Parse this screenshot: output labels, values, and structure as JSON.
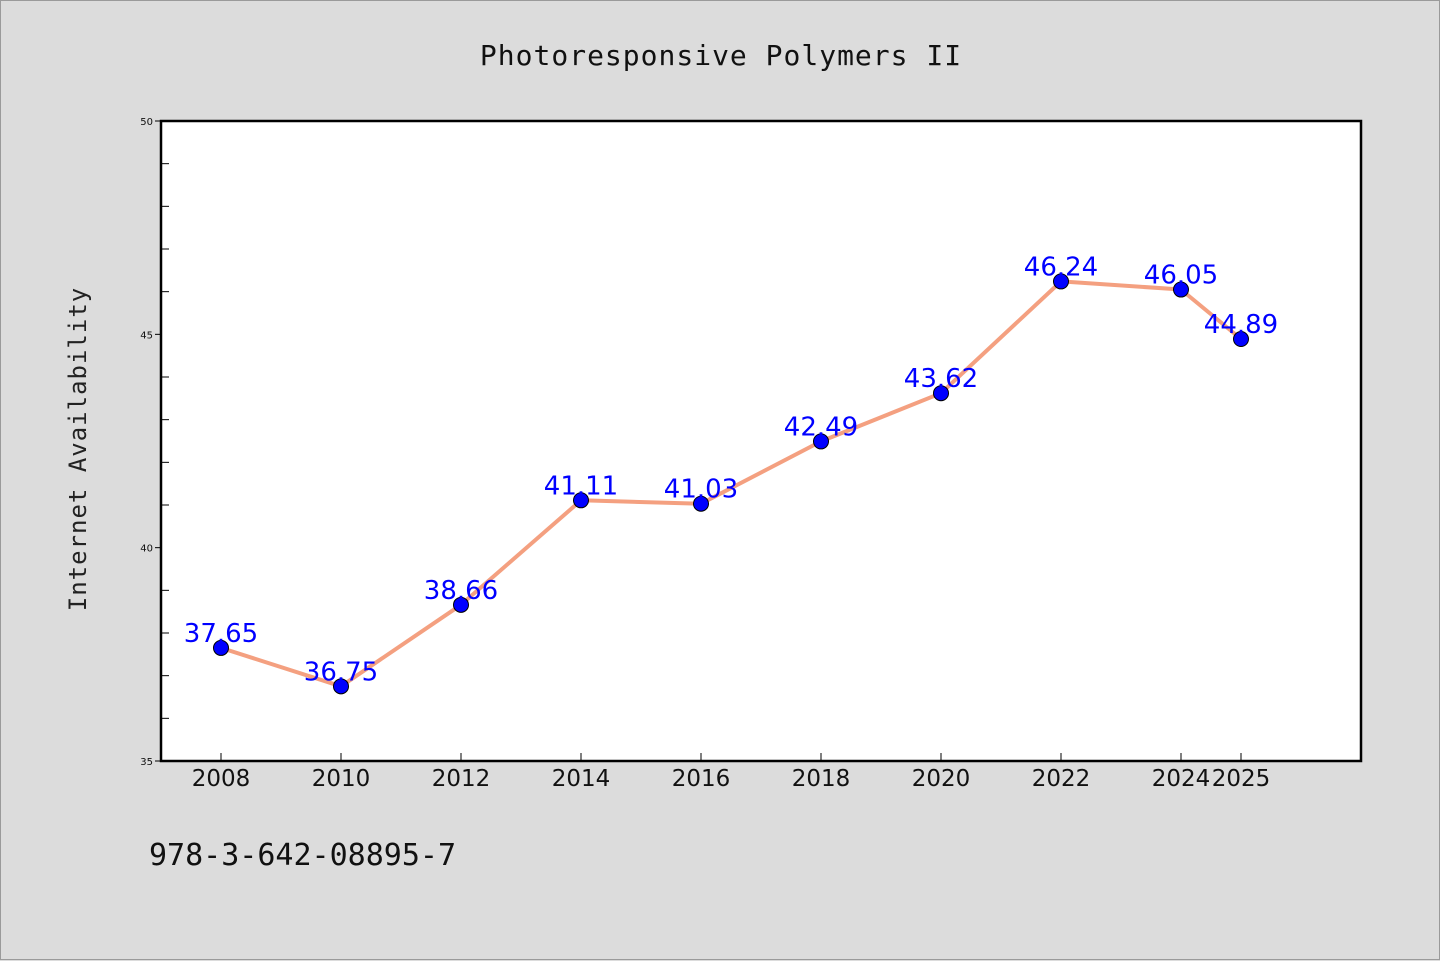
{
  "chart_data": {
    "type": "line",
    "title": "Photoresponsive Polymers II",
    "xlabel": "",
    "ylabel": "Internet Availability",
    "categories": [
      "2008",
      "2010",
      "2012",
      "2014",
      "2016",
      "2018",
      "2020",
      "2022",
      "2024",
      "2025"
    ],
    "series": [
      {
        "values": [
          37.65,
          36.75,
          38.66,
          41.11,
          41.03,
          42.49,
          43.62,
          46.24,
          46.05,
          44.89
        ],
        "data_labels": [
          "37.65",
          "36.75",
          "38.66",
          "41.11",
          "41.03",
          "42.49",
          "43.62",
          "46.24",
          "46.05",
          "44.89"
        ],
        "line_color": "#f4a080",
        "marker_color": "#0000ff"
      }
    ],
    "ylim": [
      35,
      50
    ],
    "yticks": [
      "35",
      "40",
      "45",
      "50"
    ],
    "grid": false,
    "legend": "none"
  },
  "annotation": "978-3-642-08895-7",
  "colors": {
    "background": "#dcdcdc",
    "plot_background": "#ffffff",
    "data_label": "#0000ff"
  }
}
